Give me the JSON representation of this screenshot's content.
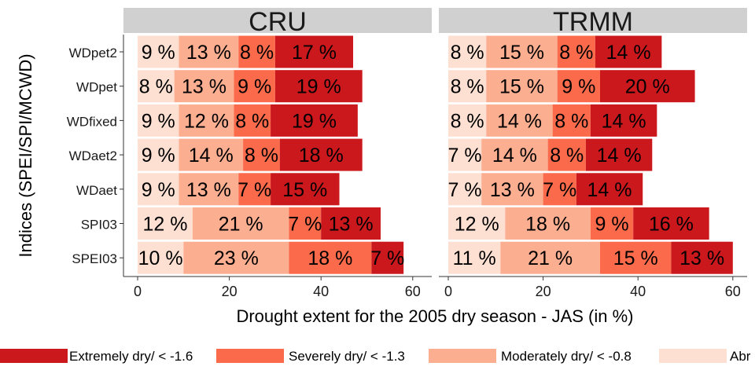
{
  "chart_data": {
    "type": "bar",
    "stacked": true,
    "orientation": "horizontal",
    "panels": [
      "CRU",
      "TRMM"
    ],
    "categories": [
      "WDpet2",
      "WDpet",
      "WDfixed",
      "WDaet2",
      "WDaet",
      "SPI03",
      "SPEI03"
    ],
    "xlabel": "Drought extent for the 2005 dry season - JAS (in %)",
    "ylabel": "Indices (SPEI/SPI/MCWD)",
    "xlim": [
      0,
      62
    ],
    "xticks": [
      0,
      20,
      40,
      60
    ],
    "grid": false,
    "legend_position": "bottom",
    "series": [
      {
        "name": "Abr",
        "color": "#FEE0D2",
        "values": {
          "CRU": [
            9,
            8,
            9,
            9,
            9,
            12,
            10
          ],
          "TRMM": [
            8,
            8,
            8,
            7,
            7,
            12,
            11
          ]
        }
      },
      {
        "name": "Moderately dry/ < -0.8",
        "color": "#FCAE91",
        "values": {
          "CRU": [
            13,
            13,
            12,
            14,
            13,
            21,
            23
          ],
          "TRMM": [
            15,
            15,
            14,
            14,
            13,
            18,
            21
          ]
        }
      },
      {
        "name": "Severely dry/ < -1.3",
        "color": "#FB6A4A",
        "values": {
          "CRU": [
            8,
            9,
            8,
            8,
            7,
            7,
            18
          ],
          "TRMM": [
            8,
            9,
            8,
            8,
            7,
            9,
            15
          ]
        }
      },
      {
        "name": "Extremely dry/ < -1.6",
        "color": "#CB181D",
        "values": {
          "CRU": [
            17,
            19,
            19,
            18,
            15,
            13,
            7
          ],
          "TRMM": [
            14,
            20,
            14,
            14,
            14,
            16,
            13
          ]
        }
      }
    ],
    "legend_order": [
      3,
      2,
      1,
      0
    ],
    "label_suffix": " %"
  }
}
